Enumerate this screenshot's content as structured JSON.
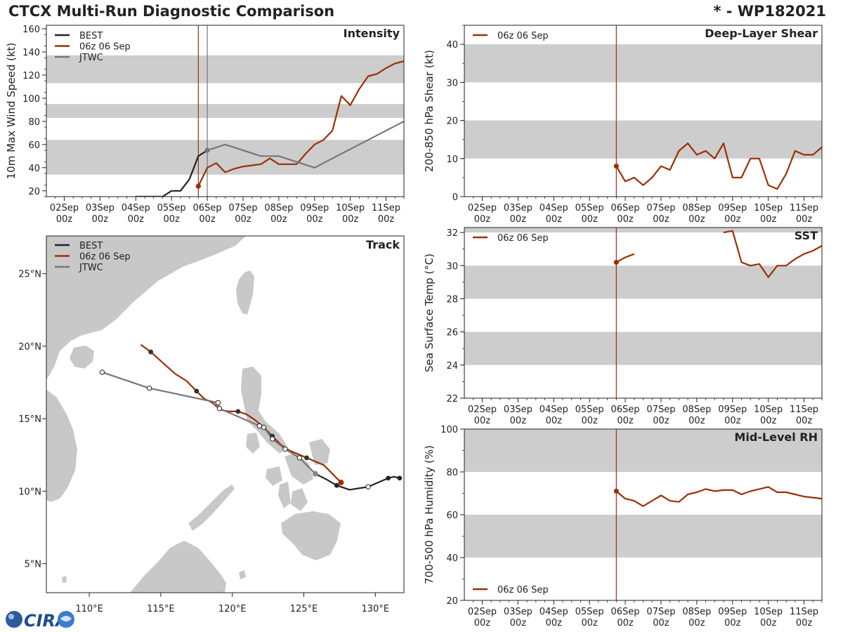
{
  "header": {
    "title": "CTCX Multi-Run Diagnostic Comparison",
    "storm_id": "* - WP182021"
  },
  "colors": {
    "best": "#222222",
    "run": "#9a3006",
    "jtwc": "#777777",
    "band": "#cdcdcd",
    "land": "#c8c8c8",
    "marker": "#9a3006"
  },
  "logo": {
    "text": "CIRA"
  },
  "chart_data": [
    {
      "id": "intensity",
      "type": "line",
      "title": "Intensity",
      "ylabel": "10m Max Wind Speed (kt)",
      "ylim": [
        15,
        163
      ],
      "yticks": [
        20,
        40,
        60,
        80,
        100,
        120,
        140,
        160
      ],
      "minor_ystep": 10,
      "xlim": [
        0,
        10
      ],
      "xticks": [
        {
          "day": "02Sep",
          "hour": "00z"
        },
        {
          "day": "03Sep",
          "hour": "00z"
        },
        {
          "day": "04Sep",
          "hour": "00z"
        },
        {
          "day": "05Sep",
          "hour": "00z"
        },
        {
          "day": "06Sep",
          "hour": "00z"
        },
        {
          "day": "07Sep",
          "hour": "00z"
        },
        {
          "day": "08Sep",
          "hour": "00z"
        },
        {
          "day": "09Sep",
          "hour": "00z"
        },
        {
          "day": "10Sep",
          "hour": "00z"
        },
        {
          "day": "11Sep",
          "hour": "00z"
        }
      ],
      "bands": [
        [
          34,
          64
        ],
        [
          83,
          95
        ],
        [
          113,
          137
        ]
      ],
      "vlines": [
        {
          "x": 4.25,
          "color": "#9a3006"
        },
        {
          "x": 4.5,
          "color": "#777777"
        }
      ],
      "legend": [
        "BEST",
        "06z 06 Sep",
        "JTWC"
      ],
      "series": [
        {
          "name": "BEST",
          "color": "#222222",
          "x": [
            2.5,
            2.75,
            3.0,
            3.25,
            3.5,
            3.75,
            4.0,
            4.25,
            4.5
          ],
          "y": [
            15,
            15,
            15,
            15,
            20,
            20,
            30,
            50,
            55
          ],
          "dots": []
        },
        {
          "name": "06z 06 Sep",
          "color": "#9a3006",
          "x": [
            4.25,
            4.5,
            4.75,
            5.0,
            5.25,
            5.5,
            5.75,
            6.0,
            6.25,
            6.5,
            6.75,
            7.0,
            7.25,
            7.5,
            7.75,
            8.0,
            8.25,
            8.5,
            8.75,
            9.0,
            9.25,
            9.5,
            9.75,
            10.0
          ],
          "y": [
            24,
            40,
            44,
            36,
            39,
            41,
            42,
            43,
            48,
            43,
            43,
            43,
            52,
            60,
            64,
            72,
            102,
            94,
            108,
            119,
            121,
            126,
            130,
            132
          ],
          "dots": [
            0
          ]
        },
        {
          "name": "JTWC",
          "color": "#777777",
          "x": [
            4.5,
            5.0,
            6.0,
            6.5,
            7.5,
            10.0
          ],
          "y": [
            55,
            60,
            50,
            50,
            40,
            80
          ],
          "dots": [
            0
          ]
        }
      ]
    },
    {
      "id": "track",
      "type": "scatter",
      "title": "Track",
      "xlim": [
        107,
        132
      ],
      "ylim": [
        3,
        27.6
      ],
      "xticks": [
        {
          "v": 110,
          "label": "110°E"
        },
        {
          "v": 115,
          "label": "115°E"
        },
        {
          "v": 120,
          "label": "120°E"
        },
        {
          "v": 125,
          "label": "125°E"
        },
        {
          "v": 130,
          "label": "130°E"
        }
      ],
      "yticks": [
        {
          "v": 5,
          "label": "5°N"
        },
        {
          "v": 10,
          "label": "10°N"
        },
        {
          "v": 15,
          "label": "15°N"
        },
        {
          "v": 20,
          "label": "20°N"
        },
        {
          "v": 25,
          "label": "25°N"
        }
      ],
      "legend": [
        "BEST",
        "06z 06 Sep",
        "JTWC"
      ],
      "series": [
        {
          "name": "BEST",
          "color": "#222222",
          "lon": [
            131.7,
            131.3,
            130.9,
            129.5,
            128.2,
            127.3,
            126.6,
            125.8
          ],
          "lat": [
            10.9,
            11.0,
            10.9,
            10.3,
            10.1,
            10.4,
            10.8,
            11.2
          ],
          "filled": [
            1,
            0,
            1,
            0,
            0,
            1,
            0,
            0
          ],
          "open": [
            0,
            0,
            0,
            1,
            0,
            0,
            0,
            0
          ]
        },
        {
          "name": "06z 06 Sep",
          "color": "#9a3006",
          "lon": [
            127.6,
            127.0,
            126.4,
            125.2,
            124.5,
            124.0,
            123.4,
            122.8,
            122.2,
            121.6,
            121.0,
            120.4,
            119.8,
            119.2,
            118.6,
            118.0,
            117.5,
            116.8,
            116.0,
            115.2,
            114.3,
            113.6
          ],
          "lat": [
            10.6,
            11.2,
            11.8,
            12.3,
            12.6,
            12.8,
            13.2,
            13.8,
            14.4,
            14.9,
            15.3,
            15.5,
            15.5,
            15.6,
            16.1,
            16.4,
            16.9,
            17.6,
            18.1,
            18.8,
            19.6,
            20.1
          ],
          "filled": [
            0,
            0,
            0,
            1,
            0,
            0,
            0,
            1,
            0,
            0,
            0,
            1,
            0,
            0,
            0,
            0,
            1,
            0,
            0,
            0,
            1,
            0
          ]
        },
        {
          "name": "JTWC",
          "color": "#777777",
          "lon": [
            125.8,
            124.7,
            123.7,
            122.8,
            122.2,
            121.9,
            119.1,
            119.0,
            114.2,
            110.9
          ],
          "lat": [
            11.2,
            12.3,
            12.9,
            13.6,
            14.4,
            14.5,
            15.7,
            16.1,
            17.1,
            18.2
          ],
          "filled": [
            0,
            0,
            0,
            0,
            0,
            0,
            0,
            0,
            0,
            0
          ]
        }
      ]
    },
    {
      "id": "shear",
      "type": "line",
      "title": "Deep-Layer Shear",
      "ylabel": "200-850 hPa Shear (kt)",
      "ylim": [
        0,
        45
      ],
      "yticks": [
        0,
        10,
        20,
        30,
        40
      ],
      "minor_ystep": 5,
      "xlim": [
        0,
        10
      ],
      "bands": [
        [
          10,
          20
        ],
        [
          30,
          40
        ]
      ],
      "vlines": [
        {
          "x": 4.25,
          "color": "#9a3006"
        }
      ],
      "legend": [
        "06z 06 Sep"
      ],
      "series": [
        {
          "name": "06z 06 Sep",
          "color": "#9a3006",
          "x": [
            4.25,
            4.5,
            4.75,
            5.0,
            5.25,
            5.5,
            5.75,
            6.0,
            6.25,
            6.5,
            6.75,
            7.0,
            7.25,
            7.5,
            7.75,
            8.0,
            8.25,
            8.5,
            8.75,
            9.0,
            9.25,
            9.5,
            9.75,
            10.0
          ],
          "y": [
            8,
            4,
            5,
            3,
            5,
            8,
            7,
            12,
            14,
            11,
            12,
            10,
            14,
            5,
            5,
            10,
            10,
            3,
            2,
            6,
            12,
            11,
            11,
            13
          ],
          "dots": [
            0
          ]
        }
      ]
    },
    {
      "id": "sst",
      "type": "line",
      "title": "SST",
      "ylabel": "Sea Surface Temp (°C)",
      "ylim": [
        22,
        32.3
      ],
      "yticks": [
        22,
        24,
        26,
        28,
        30,
        32
      ],
      "minor_ystep": 1,
      "xlim": [
        0,
        10
      ],
      "bands": [
        [
          24,
          26
        ],
        [
          28,
          30
        ],
        [
          32,
          32.3
        ]
      ],
      "vlines": [
        {
          "x": 4.25,
          "color": "#9a3006"
        }
      ],
      "legend": [
        "06z 06 Sep"
      ],
      "series": [
        {
          "name": "06z 06 Sep",
          "color": "#9a3006",
          "x": [
            4.25,
            4.5,
            4.75
          ],
          "y": [
            30.2,
            30.5,
            30.7
          ],
          "dots": [
            0
          ]
        },
        {
          "name": "06z 06 Sep (cont.)",
          "color": "#9a3006",
          "x": [
            7.25,
            7.5,
            7.75,
            8.0,
            8.25,
            8.5,
            8.75,
            9.0,
            9.25,
            9.5,
            9.75,
            10.0
          ],
          "y": [
            32.0,
            32.1,
            30.2,
            30.0,
            30.1,
            29.3,
            30.0,
            30.0,
            30.4,
            30.7,
            30.9,
            31.2
          ],
          "dots": []
        }
      ]
    },
    {
      "id": "rh",
      "type": "line",
      "title": "Mid-Level RH",
      "ylabel": "700-500 hPa Humidity (%)",
      "ylim": [
        20,
        100
      ],
      "yticks": [
        20,
        40,
        60,
        80,
        100
      ],
      "minor_ystep": 10,
      "xlim": [
        0,
        10
      ],
      "bands": [
        [
          40,
          60
        ],
        [
          80,
          100
        ]
      ],
      "vlines": [
        {
          "x": 4.25,
          "color": "#9a3006"
        }
      ],
      "legend": [
        "06z 06 Sep"
      ],
      "series": [
        {
          "name": "06z 06 Sep",
          "color": "#9a3006",
          "x": [
            4.25,
            4.5,
            4.75,
            5.0,
            5.25,
            5.5,
            5.75,
            6.0,
            6.25,
            6.5,
            6.75,
            7.0,
            7.25,
            7.5,
            7.75,
            8.0,
            8.25,
            8.5,
            8.75,
            9.0,
            9.25,
            9.5,
            9.75,
            10.0
          ],
          "y": [
            71,
            67.5,
            66.5,
            64,
            66.5,
            69,
            66.5,
            66,
            69.5,
            70.5,
            72,
            71,
            71.5,
            71.5,
            69.5,
            71,
            72,
            73,
            70.5,
            70.5,
            69.5,
            68.5,
            68,
            67.5
          ],
          "dots": [
            0
          ]
        }
      ]
    }
  ]
}
